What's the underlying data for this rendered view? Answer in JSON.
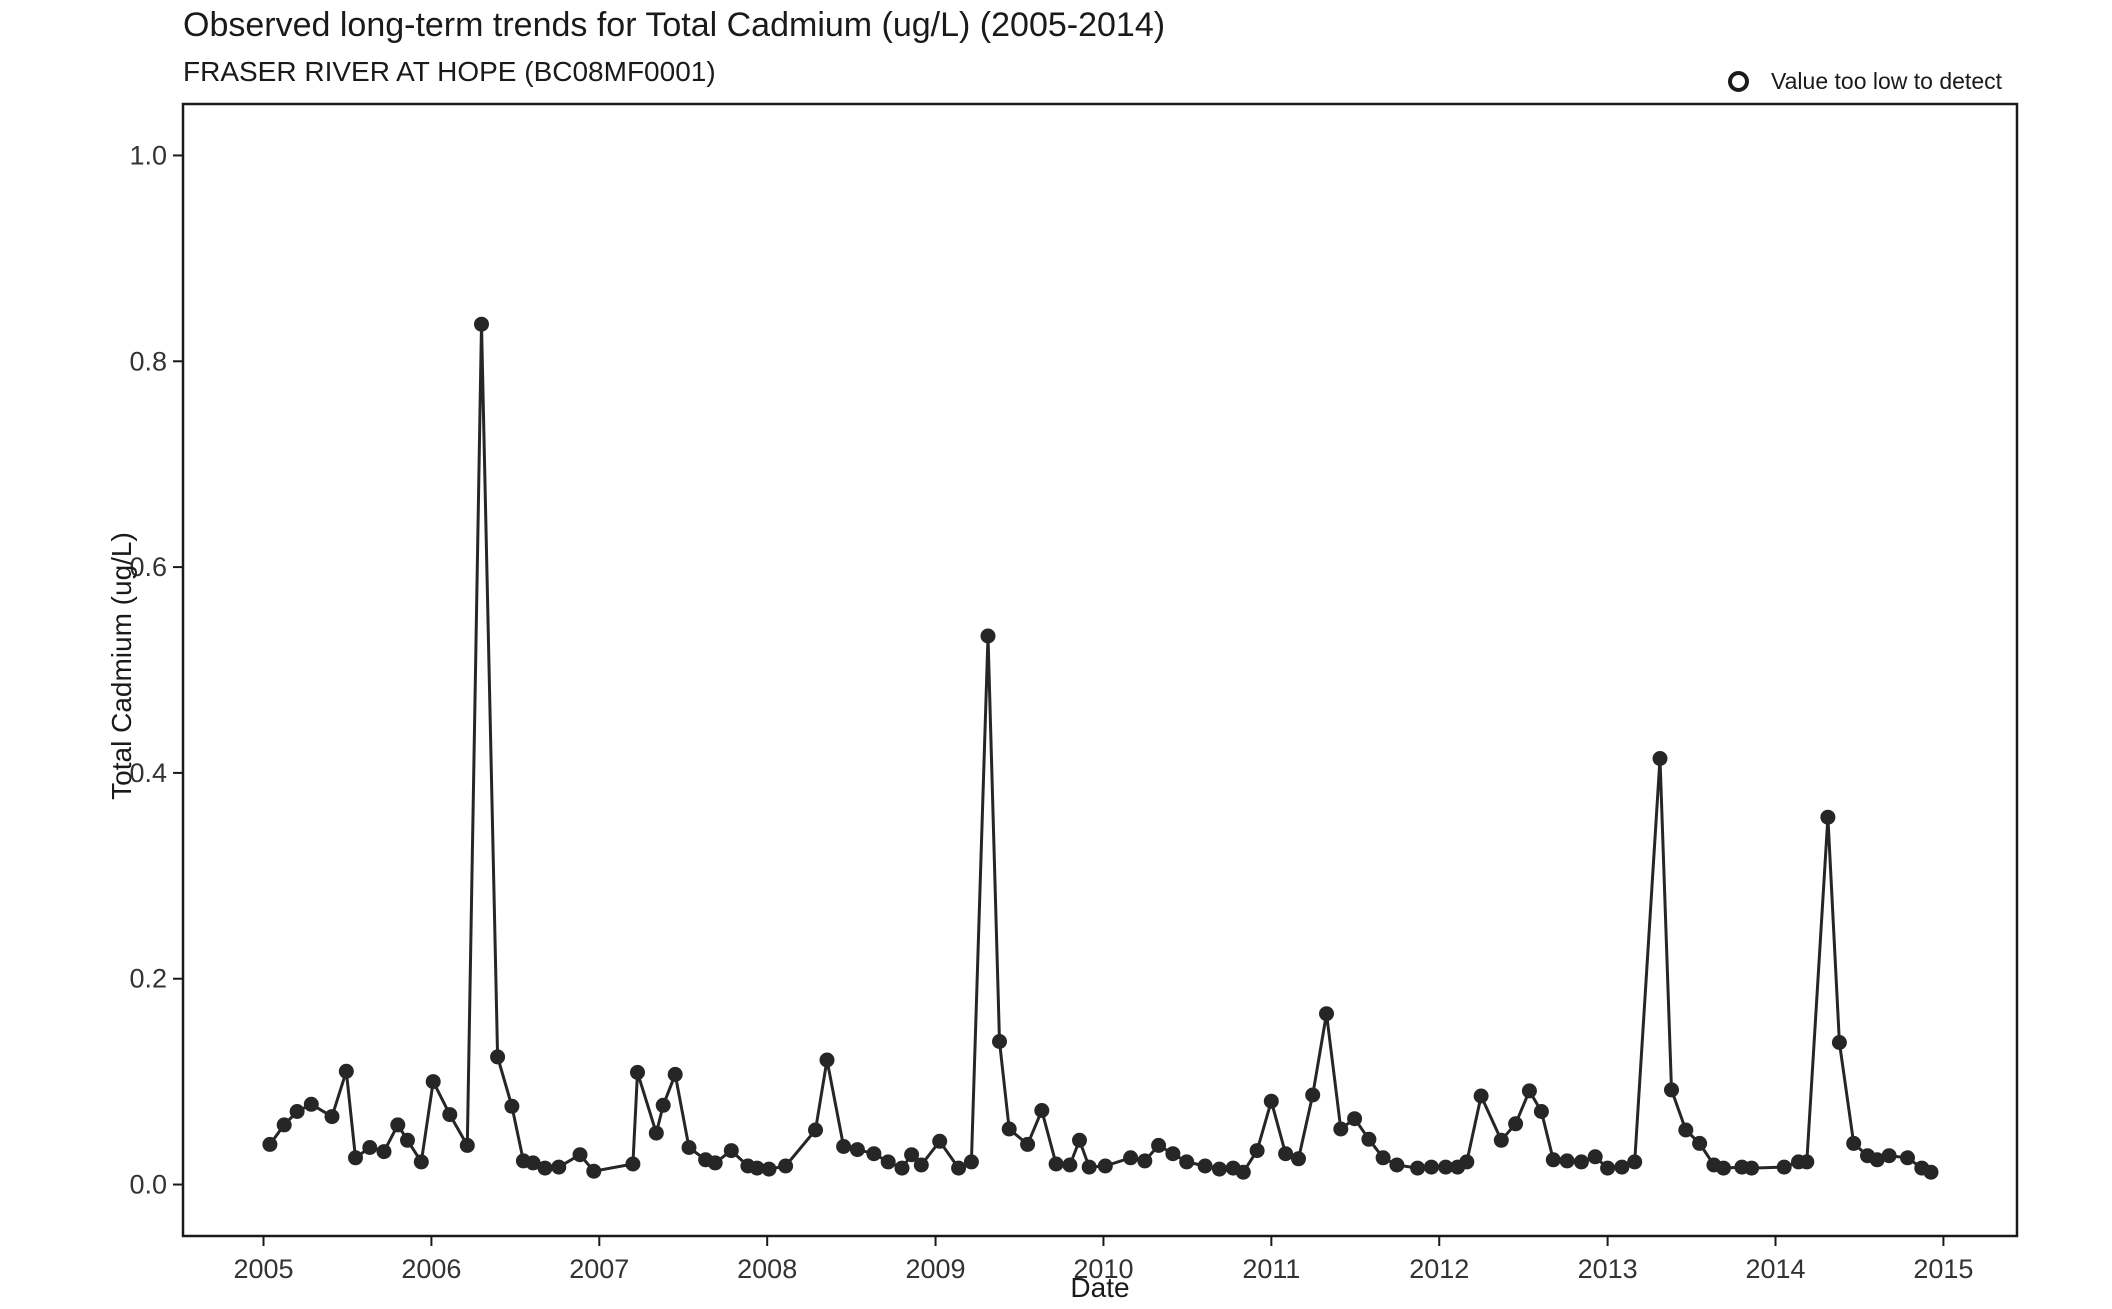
{
  "title": "Observed long-term trends for Total Cadmium (ug/L) (2005-2014)",
  "subtitle": "FRASER RIVER AT HOPE (BC08MF0001)",
  "legend": {
    "label": "Value too low to detect",
    "icon": "open-circle-icon"
  },
  "chart_data": {
    "type": "line",
    "title": "Observed long-term trends for Total Cadmium (ug/L) (2005-2014)",
    "subtitle": "FRASER RIVER AT HOPE (BC08MF0001)",
    "xlabel": "Date",
    "ylabel": "Total Cadmium (ug/L)",
    "xlim": [
      "2004-07-10",
      "2015-06-10"
    ],
    "ylim": [
      -0.05,
      1.05
    ],
    "x_ticks": [
      "2005",
      "2006",
      "2007",
      "2008",
      "2009",
      "2010",
      "2011",
      "2012",
      "2013",
      "2014",
      "2015"
    ],
    "y_ticks": [
      "0.0",
      "0.2",
      "0.4",
      "0.6",
      "0.8",
      "1.0"
    ],
    "y_tick_values": [
      0,
      0.2,
      0.4,
      0.6,
      0.8,
      1.0
    ],
    "grid": false,
    "legend_position": "top-right",
    "colors": {
      "line": "#262626",
      "point": "#262626",
      "axis": "#1a1a1a"
    },
    "series": [
      {
        "x": [
          "2005-01-15",
          "2005-02-15",
          "2005-03-15",
          "2005-04-15",
          "2005-05-30",
          "2005-06-30",
          "2005-07-20",
          "2005-08-20",
          "2005-09-20",
          "2005-10-20",
          "2005-11-10",
          "2005-12-10",
          "2006-01-05",
          "2006-02-10",
          "2006-03-20",
          "2006-04-20",
          "2006-05-25",
          "2006-06-25",
          "2006-07-20",
          "2006-08-10",
          "2006-09-05",
          "2006-10-05",
          "2006-11-20",
          "2006-12-20",
          "2007-03-15",
          "2007-03-25",
          "2007-05-05",
          "2007-05-20",
          "2007-06-15",
          "2007-07-15",
          "2007-08-20",
          "2007-09-10",
          "2007-10-15",
          "2007-11-20",
          "2007-12-10",
          "2008-01-05",
          "2008-02-10",
          "2008-04-15",
          "2008-05-10",
          "2008-06-15",
          "2008-07-15",
          "2008-08-20",
          "2008-09-20",
          "2008-10-20",
          "2008-11-10",
          "2008-12-01",
          "2009-01-10",
          "2009-02-20",
          "2009-03-20",
          "2009-04-25",
          "2009-05-20",
          "2009-06-10",
          "2009-07-20",
          "2009-08-20",
          "2009-09-20",
          "2009-10-20",
          "2009-11-10",
          "2009-12-01",
          "2010-01-05",
          "2010-03-01",
          "2010-04-01",
          "2010-05-01",
          "2010-06-01",
          "2010-07-01",
          "2010-08-10",
          "2010-09-10",
          "2010-10-10",
          "2010-11-01",
          "2010-12-01",
          "2011-01-01",
          "2011-02-01",
          "2011-03-01",
          "2011-04-01",
          "2011-05-01",
          "2011-06-01",
          "2011-07-01",
          "2011-08-01",
          "2011-09-01",
          "2011-10-01",
          "2011-11-15",
          "2011-12-15",
          "2012-01-15",
          "2012-02-10",
          "2012-03-01",
          "2012-04-01",
          "2012-05-15",
          "2012-06-15",
          "2012-07-15",
          "2012-08-10",
          "2012-09-05",
          "2012-10-05",
          "2012-11-05",
          "2012-12-05",
          "2013-01-01",
          "2013-02-01",
          "2013-03-01",
          "2013-04-25",
          "2013-05-20",
          "2013-06-20",
          "2013-07-20",
          "2013-08-20",
          "2013-09-10",
          "2013-10-20",
          "2013-11-10",
          "2014-01-20",
          "2014-02-20",
          "2014-03-10",
          "2014-04-25",
          "2014-05-20",
          "2014-06-20",
          "2014-07-20",
          "2014-08-10",
          "2014-09-05",
          "2014-10-15",
          "2014-11-15",
          "2014-12-05"
        ],
        "values": [
          0.039,
          0.058,
          0.071,
          0.078,
          0.066,
          0.11,
          0.026,
          0.036,
          0.032,
          0.058,
          0.043,
          0.022,
          0.1,
          0.068,
          0.038,
          0.836,
          0.124,
          0.076,
          0.023,
          0.021,
          0.016,
          0.017,
          0.029,
          0.013,
          0.02,
          0.109,
          0.05,
          0.077,
          0.107,
          0.036,
          0.024,
          0.021,
          0.033,
          0.018,
          0.016,
          0.015,
          0.018,
          0.053,
          0.121,
          0.037,
          0.034,
          0.03,
          0.022,
          0.016,
          0.029,
          0.019,
          0.042,
          0.016,
          0.022,
          0.533,
          0.139,
          0.054,
          0.039,
          0.072,
          0.02,
          0.019,
          0.043,
          0.017,
          0.018,
          0.026,
          0.023,
          0.038,
          0.03,
          0.022,
          0.018,
          0.015,
          0.016,
          0.012,
          0.033,
          0.081,
          0.03,
          0.025,
          0.087,
          0.166,
          0.054,
          0.064,
          0.044,
          0.026,
          0.019,
          0.016,
          0.017,
          0.017,
          0.017,
          0.022,
          0.086,
          0.043,
          0.059,
          0.091,
          0.071,
          0.024,
          0.023,
          0.022,
          0.027,
          0.016,
          0.017,
          0.022,
          0.414,
          0.092,
          0.053,
          0.04,
          0.019,
          0.016,
          0.017,
          0.016,
          0.017,
          0.022,
          0.022,
          0.357,
          0.138,
          0.04,
          0.028,
          0.024,
          0.028,
          0.026,
          0.016,
          0.012
        ]
      }
    ]
  }
}
